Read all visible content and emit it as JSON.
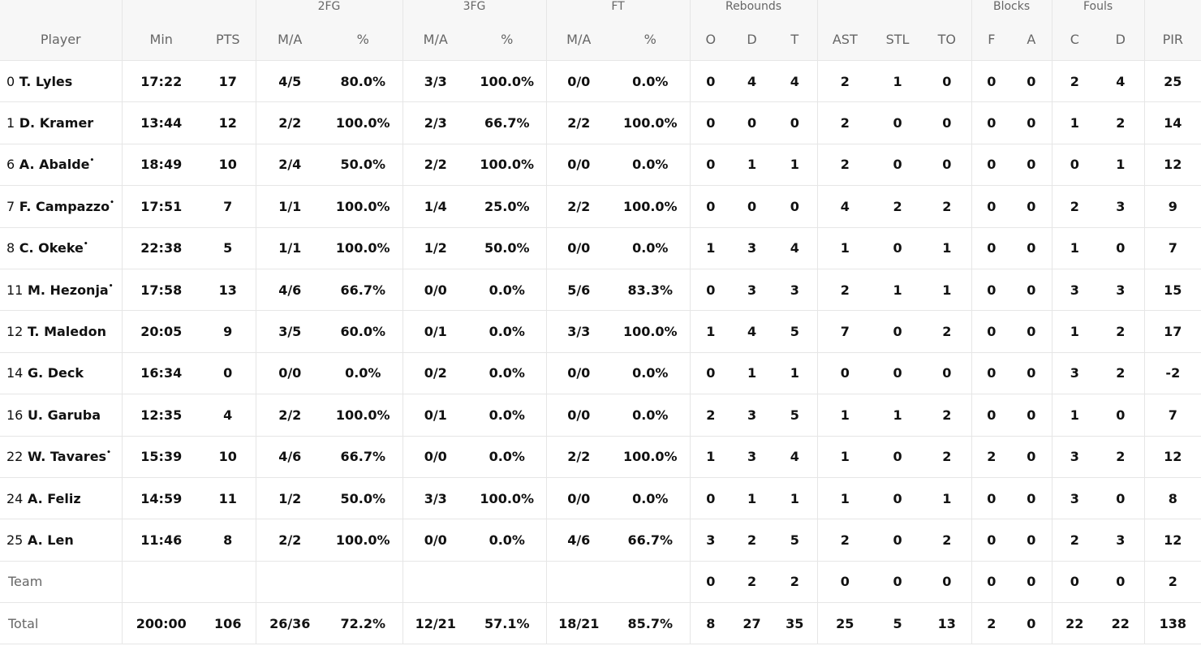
{
  "headers": {
    "groups": {
      "fg2": "2FG",
      "fg3": "3FG",
      "ft": "FT",
      "rebounds": "Rebounds",
      "blocks": "Blocks",
      "fouls": "Fouls"
    },
    "columns": {
      "player": "Player",
      "min": "Min",
      "pts": "PTS",
      "fg2_ma": "M/A",
      "fg2_pct": "%",
      "fg3_ma": "M/A",
      "fg3_pct": "%",
      "ft_ma": "M/A",
      "ft_pct": "%",
      "reb_o": "O",
      "reb_d": "D",
      "reb_t": "T",
      "ast": "AST",
      "stl": "STL",
      "to": "TO",
      "blk_f": "F",
      "blk_a": "A",
      "foul_c": "C",
      "foul_d": "D",
      "pir": "PIR"
    }
  },
  "players": [
    {
      "num": "0",
      "name": "T. Lyles",
      "starter": "",
      "min": "17:22",
      "pts": "17",
      "fg2_ma": "4/5",
      "fg2_pct": "80.0%",
      "fg3_ma": "3/3",
      "fg3_pct": "100.0%",
      "ft_ma": "0/0",
      "ft_pct": "0.0%",
      "reb_o": "0",
      "reb_d": "4",
      "reb_t": "4",
      "ast": "2",
      "stl": "1",
      "to": "0",
      "blk_f": "0",
      "blk_a": "0",
      "foul_c": "2",
      "foul_d": "4",
      "pir": "25"
    },
    {
      "num": "1",
      "name": "D. Kramer",
      "starter": "",
      "min": "13:44",
      "pts": "12",
      "fg2_ma": "2/2",
      "fg2_pct": "100.0%",
      "fg3_ma": "2/3",
      "fg3_pct": "66.7%",
      "ft_ma": "2/2",
      "ft_pct": "100.0%",
      "reb_o": "0",
      "reb_d": "0",
      "reb_t": "0",
      "ast": "2",
      "stl": "0",
      "to": "0",
      "blk_f": "0",
      "blk_a": "0",
      "foul_c": "1",
      "foul_d": "2",
      "pir": "14"
    },
    {
      "num": "6",
      "name": "A. Abalde",
      "starter": "*",
      "min": "18:49",
      "pts": "10",
      "fg2_ma": "2/4",
      "fg2_pct": "50.0%",
      "fg3_ma": "2/2",
      "fg3_pct": "100.0%",
      "ft_ma": "0/0",
      "ft_pct": "0.0%",
      "reb_o": "0",
      "reb_d": "1",
      "reb_t": "1",
      "ast": "2",
      "stl": "0",
      "to": "0",
      "blk_f": "0",
      "blk_a": "0",
      "foul_c": "0",
      "foul_d": "1",
      "pir": "12"
    },
    {
      "num": "7",
      "name": "F. Campazzo",
      "starter": "*",
      "min": "17:51",
      "pts": "7",
      "fg2_ma": "1/1",
      "fg2_pct": "100.0%",
      "fg3_ma": "1/4",
      "fg3_pct": "25.0%",
      "ft_ma": "2/2",
      "ft_pct": "100.0%",
      "reb_o": "0",
      "reb_d": "0",
      "reb_t": "0",
      "ast": "4",
      "stl": "2",
      "to": "2",
      "blk_f": "0",
      "blk_a": "0",
      "foul_c": "2",
      "foul_d": "3",
      "pir": "9"
    },
    {
      "num": "8",
      "name": "C. Okeke",
      "starter": "*",
      "min": "22:38",
      "pts": "5",
      "fg2_ma": "1/1",
      "fg2_pct": "100.0%",
      "fg3_ma": "1/2",
      "fg3_pct": "50.0%",
      "ft_ma": "0/0",
      "ft_pct": "0.0%",
      "reb_o": "1",
      "reb_d": "3",
      "reb_t": "4",
      "ast": "1",
      "stl": "0",
      "to": "1",
      "blk_f": "0",
      "blk_a": "0",
      "foul_c": "1",
      "foul_d": "0",
      "pir": "7"
    },
    {
      "num": "11",
      "name": "M. Hezonja",
      "starter": "*",
      "min": "17:58",
      "pts": "13",
      "fg2_ma": "4/6",
      "fg2_pct": "66.7%",
      "fg3_ma": "0/0",
      "fg3_pct": "0.0%",
      "ft_ma": "5/6",
      "ft_pct": "83.3%",
      "reb_o": "0",
      "reb_d": "3",
      "reb_t": "3",
      "ast": "2",
      "stl": "1",
      "to": "1",
      "blk_f": "0",
      "blk_a": "0",
      "foul_c": "3",
      "foul_d": "3",
      "pir": "15"
    },
    {
      "num": "12",
      "name": "T. Maledon",
      "starter": "",
      "min": "20:05",
      "pts": "9",
      "fg2_ma": "3/5",
      "fg2_pct": "60.0%",
      "fg3_ma": "0/1",
      "fg3_pct": "0.0%",
      "ft_ma": "3/3",
      "ft_pct": "100.0%",
      "reb_o": "1",
      "reb_d": "4",
      "reb_t": "5",
      "ast": "7",
      "stl": "0",
      "to": "2",
      "blk_f": "0",
      "blk_a": "0",
      "foul_c": "1",
      "foul_d": "2",
      "pir": "17"
    },
    {
      "num": "14",
      "name": "G. Deck",
      "starter": "",
      "min": "16:34",
      "pts": "0",
      "fg2_ma": "0/0",
      "fg2_pct": "0.0%",
      "fg3_ma": "0/2",
      "fg3_pct": "0.0%",
      "ft_ma": "0/0",
      "ft_pct": "0.0%",
      "reb_o": "0",
      "reb_d": "1",
      "reb_t": "1",
      "ast": "0",
      "stl": "0",
      "to": "0",
      "blk_f": "0",
      "blk_a": "0",
      "foul_c": "3",
      "foul_d": "2",
      "pir": "-2"
    },
    {
      "num": "16",
      "name": "U. Garuba",
      "starter": "",
      "min": "12:35",
      "pts": "4",
      "fg2_ma": "2/2",
      "fg2_pct": "100.0%",
      "fg3_ma": "0/1",
      "fg3_pct": "0.0%",
      "ft_ma": "0/0",
      "ft_pct": "0.0%",
      "reb_o": "2",
      "reb_d": "3",
      "reb_t": "5",
      "ast": "1",
      "stl": "1",
      "to": "2",
      "blk_f": "0",
      "blk_a": "0",
      "foul_c": "1",
      "foul_d": "0",
      "pir": "7"
    },
    {
      "num": "22",
      "name": "W. Tavares",
      "starter": "*",
      "min": "15:39",
      "pts": "10",
      "fg2_ma": "4/6",
      "fg2_pct": "66.7%",
      "fg3_ma": "0/0",
      "fg3_pct": "0.0%",
      "ft_ma": "2/2",
      "ft_pct": "100.0%",
      "reb_o": "1",
      "reb_d": "3",
      "reb_t": "4",
      "ast": "1",
      "stl": "0",
      "to": "2",
      "blk_f": "2",
      "blk_a": "0",
      "foul_c": "3",
      "foul_d": "2",
      "pir": "12"
    },
    {
      "num": "24",
      "name": "A. Feliz",
      "starter": "",
      "min": "14:59",
      "pts": "11",
      "fg2_ma": "1/2",
      "fg2_pct": "50.0%",
      "fg3_ma": "3/3",
      "fg3_pct": "100.0%",
      "ft_ma": "0/0",
      "ft_pct": "0.0%",
      "reb_o": "0",
      "reb_d": "1",
      "reb_t": "1",
      "ast": "1",
      "stl": "0",
      "to": "1",
      "blk_f": "0",
      "blk_a": "0",
      "foul_c": "3",
      "foul_d": "0",
      "pir": "8"
    },
    {
      "num": "25",
      "name": "A. Len",
      "starter": "",
      "min": "11:46",
      "pts": "8",
      "fg2_ma": "2/2",
      "fg2_pct": "100.0%",
      "fg3_ma": "0/0",
      "fg3_pct": "0.0%",
      "ft_ma": "4/6",
      "ft_pct": "66.7%",
      "reb_o": "3",
      "reb_d": "2",
      "reb_t": "5",
      "ast": "2",
      "stl": "0",
      "to": "2",
      "blk_f": "0",
      "blk_a": "0",
      "foul_c": "2",
      "foul_d": "3",
      "pir": "12"
    }
  ],
  "team": {
    "label": "Team",
    "min": "",
    "pts": "",
    "fg2_ma": "",
    "fg2_pct": "",
    "fg3_ma": "",
    "fg3_pct": "",
    "ft_ma": "",
    "ft_pct": "",
    "reb_o": "0",
    "reb_d": "2",
    "reb_t": "2",
    "ast": "0",
    "stl": "0",
    "to": "0",
    "blk_f": "0",
    "blk_a": "0",
    "foul_c": "0",
    "foul_d": "0",
    "pir": "2"
  },
  "total": {
    "label": "Total",
    "min": "200:00",
    "pts": "106",
    "fg2_ma": "26/36",
    "fg2_pct": "72.2%",
    "fg3_ma": "12/21",
    "fg3_pct": "57.1%",
    "ft_ma": "18/21",
    "ft_pct": "85.7%",
    "reb_o": "8",
    "reb_d": "27",
    "reb_t": "35",
    "ast": "25",
    "stl": "5",
    "to": "13",
    "blk_f": "2",
    "blk_a": "0",
    "foul_c": "22",
    "foul_d": "22",
    "pir": "138"
  }
}
